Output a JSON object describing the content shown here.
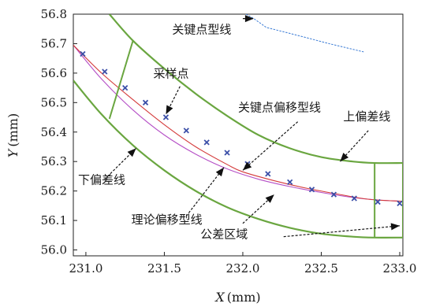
{
  "chart_data": {
    "type": "line",
    "xlabel_var": "X",
    "xlabel_unit": "(mm)",
    "ylabel_var": "Y",
    "ylabel_unit": "(mm)",
    "xlim": [
      230.92,
      233.02
    ],
    "ylim": [
      55.98,
      56.8
    ],
    "xticks": [
      "231.0",
      "231.5",
      "232.0",
      "232.5",
      "233.0"
    ],
    "xtick_values": [
      231.0,
      231.5,
      232.0,
      232.5,
      233.0
    ],
    "yticks": [
      "56.0",
      "56.1",
      "56.2",
      "56.3",
      "56.4",
      "56.5",
      "56.6",
      "56.7",
      "56.8"
    ],
    "ytick_values": [
      56.0,
      56.1,
      56.2,
      56.3,
      56.4,
      56.5,
      56.6,
      56.7,
      56.8
    ],
    "grid": false,
    "colors": {
      "tolerance": "#6aa640",
      "theory": "#b54fc6",
      "offset": "#d43a3a",
      "keypoint": "#3a7bd5",
      "samples": "#3b4fa8"
    },
    "series": [
      {
        "id": "upper",
        "x": [
          231.15,
          231.3,
          231.5,
          231.7,
          231.9,
          232.1,
          232.3,
          232.5,
          232.7,
          232.84,
          233.02
        ],
        "y": [
          56.8,
          56.71,
          56.615,
          56.53,
          56.455,
          56.39,
          56.345,
          56.315,
          56.3,
          56.295,
          56.295
        ]
      },
      {
        "id": "lower",
        "x": [
          230.92,
          231.1,
          231.3,
          231.5,
          231.7,
          231.9,
          232.1,
          232.3,
          232.5,
          232.7,
          232.84,
          233.02
        ],
        "y": [
          56.575,
          56.46,
          56.355,
          56.27,
          56.2,
          56.145,
          56.105,
          56.075,
          56.055,
          56.045,
          56.042,
          56.042
        ]
      },
      {
        "id": "theory",
        "x": [
          230.92,
          231.1,
          231.3,
          231.5,
          231.7,
          231.9,
          232.1,
          232.3,
          232.5,
          232.7,
          232.85,
          233.02
        ],
        "y": [
          56.695,
          56.58,
          56.475,
          56.39,
          56.325,
          56.275,
          56.24,
          56.215,
          56.195,
          56.178,
          56.17,
          56.165
        ]
      },
      {
        "id": "offset",
        "x": [
          230.92,
          231.1,
          231.3,
          231.5,
          231.7,
          231.9,
          232.0,
          232.2,
          232.4,
          232.6,
          232.8,
          233.02
        ],
        "y": [
          56.695,
          56.6,
          56.51,
          56.425,
          56.35,
          56.29,
          56.265,
          56.235,
          56.21,
          56.19,
          56.172,
          56.165
        ]
      },
      {
        "id": "keypoint",
        "x": [
          232.02,
          232.07,
          232.15,
          232.35,
          232.55,
          232.77
        ],
        "y": [
          56.8,
          56.785,
          56.755,
          56.728,
          56.7,
          56.672
        ]
      }
    ],
    "samples": {
      "x": [
        230.98,
        231.12,
        231.25,
        231.38,
        231.51,
        231.64,
        231.77,
        231.9,
        232.03,
        232.16,
        232.3,
        232.44,
        232.58,
        232.71,
        232.86,
        233.0
      ],
      "y": [
        56.665,
        56.605,
        56.55,
        56.5,
        56.45,
        56.405,
        56.365,
        56.33,
        56.292,
        56.258,
        56.23,
        56.205,
        56.188,
        56.175,
        56.163,
        56.158
      ]
    },
    "segments": [
      {
        "x": [
          231.15,
          231.3
        ],
        "y": [
          56.445,
          56.71
        ]
      },
      {
        "x": [
          232.84,
          232.84
        ],
        "y": [
          56.042,
          56.295
        ]
      },
      {
        "x": [
          233.02,
          233.02
        ],
        "y": [
          56.042,
          56.295
        ]
      }
    ],
    "annotations": [
      {
        "text": "关键点型线",
        "tx": 231.55,
        "ty": 56.735,
        "ax": 232.0,
        "ay": 56.785,
        "hx": 232.07,
        "hy": 56.785
      },
      {
        "text": "采样点",
        "tx": 231.43,
        "ty": 56.585,
        "ax": 231.6,
        "ay": 56.555,
        "hx": 231.51,
        "hy": 56.46
      },
      {
        "text": "关键点偏移型线",
        "tx": 231.97,
        "ty": 56.47,
        "ax": 232.35,
        "ay": 56.435,
        "hx": 232.0,
        "hy": 56.27
      },
      {
        "text": "上偏差线",
        "tx": 232.64,
        "ty": 56.44,
        "ax": 232.8,
        "ay": 56.405,
        "hx": 232.62,
        "hy": 56.3
      },
      {
        "text": "下偏差线",
        "tx": 230.95,
        "ty": 56.225,
        "ax": 231.12,
        "ay": 56.24,
        "hx": 231.32,
        "hy": 56.345
      },
      {
        "text": "理论偏移型线",
        "tx": 231.29,
        "ty": 56.09,
        "ax": 231.64,
        "ay": 56.115,
        "hx": 231.88,
        "hy": 56.28
      },
      {
        "text": "公差区域",
        "tx": 231.73,
        "ty": 56.04,
        "ax": 232.26,
        "ay": 56.045,
        "hx": 233.0,
        "hy": 56.082
      },
      {
        "text": "",
        "tx": 0,
        "ty": 0,
        "ax": 232.0,
        "ay": 56.09,
        "hx": 232.2,
        "hy": 56.188
      }
    ]
  }
}
